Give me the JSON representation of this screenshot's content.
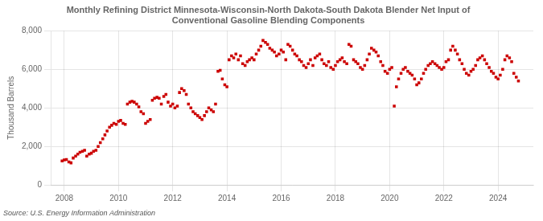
{
  "chart_data": {
    "type": "scatter",
    "title": "Monthly Refining District Minnesota-Wisconsin-North Dakota-South Dakota Blender Net Input of\nConventional Gasoline Blending Components",
    "ylabel": "Thousand Barrels",
    "source": "Source: U.S. Energy Information Administration",
    "color": "#cc0000",
    "marker": "square",
    "grid": true,
    "xlim": [
      2007.5,
      2025.3
    ],
    "xticks": [
      2008,
      2010,
      2012,
      2014,
      2016,
      2018,
      2020,
      2022,
      2024
    ],
    "ylim": [
      0,
      8000
    ],
    "yticks": [
      0,
      {
        "value": 2000,
        "label": "2,000"
      },
      {
        "value": 4000,
        "label": "4,000"
      },
      {
        "value": 6000,
        "label": "6,000"
      },
      {
        "value": 8000,
        "label": "8,000"
      }
    ],
    "x": [
      2007.92,
      2008.0,
      2008.08,
      2008.17,
      2008.25,
      2008.33,
      2008.42,
      2008.5,
      2008.58,
      2008.67,
      2008.75,
      2008.83,
      2008.92,
      2009.0,
      2009.08,
      2009.17,
      2009.25,
      2009.33,
      2009.42,
      2009.5,
      2009.58,
      2009.67,
      2009.75,
      2009.83,
      2009.92,
      2010.0,
      2010.08,
      2010.17,
      2010.25,
      2010.33,
      2010.42,
      2010.5,
      2010.58,
      2010.67,
      2010.75,
      2010.83,
      2010.92,
      2011.0,
      2011.08,
      2011.17,
      2011.25,
      2011.33,
      2011.42,
      2011.5,
      2011.58,
      2011.67,
      2011.75,
      2011.83,
      2011.92,
      2012.0,
      2012.08,
      2012.17,
      2012.25,
      2012.33,
      2012.42,
      2012.5,
      2012.58,
      2012.67,
      2012.75,
      2012.83,
      2012.92,
      2013.0,
      2013.08,
      2013.17,
      2013.25,
      2013.33,
      2013.42,
      2013.5,
      2013.58,
      2013.67,
      2013.75,
      2013.83,
      2013.92,
      2014.0,
      2014.08,
      2014.17,
      2014.25,
      2014.33,
      2014.42,
      2014.5,
      2014.58,
      2014.67,
      2014.75,
      2014.83,
      2014.92,
      2015.0,
      2015.08,
      2015.17,
      2015.25,
      2015.33,
      2015.42,
      2015.5,
      2015.58,
      2015.67,
      2015.75,
      2015.83,
      2015.92,
      2016.0,
      2016.08,
      2016.17,
      2016.25,
      2016.33,
      2016.42,
      2016.5,
      2016.58,
      2016.67,
      2016.75,
      2016.83,
      2016.92,
      2017.0,
      2017.08,
      2017.17,
      2017.25,
      2017.33,
      2017.42,
      2017.5,
      2017.58,
      2017.67,
      2017.75,
      2017.83,
      2017.92,
      2018.0,
      2018.08,
      2018.17,
      2018.25,
      2018.33,
      2018.42,
      2018.5,
      2018.58,
      2018.67,
      2018.75,
      2018.83,
      2018.92,
      2019.0,
      2019.08,
      2019.17,
      2019.25,
      2019.33,
      2019.42,
      2019.5,
      2019.58,
      2019.67,
      2019.75,
      2019.83,
      2019.92,
      2020.0,
      2020.08,
      2020.17,
      2020.25,
      2020.33,
      2020.42,
      2020.5,
      2020.58,
      2020.67,
      2020.75,
      2020.83,
      2020.92,
      2021.0,
      2021.08,
      2021.17,
      2021.25,
      2021.33,
      2021.42,
      2021.5,
      2021.58,
      2021.67,
      2021.75,
      2021.83,
      2021.92,
      2022.0,
      2022.08,
      2022.17,
      2022.25,
      2022.33,
      2022.42,
      2022.5,
      2022.58,
      2022.67,
      2022.75,
      2022.83,
      2022.92,
      2023.0,
      2023.08,
      2023.17,
      2023.25,
      2023.33,
      2023.42,
      2023.5,
      2023.58,
      2023.67,
      2023.75,
      2023.83,
      2023.92,
      2024.0,
      2024.08,
      2024.17,
      2024.25,
      2024.33,
      2024.42,
      2024.5,
      2024.58,
      2024.67,
      2024.75
    ],
    "values": [
      1250,
      1300,
      1320,
      1200,
      1150,
      1400,
      1500,
      1600,
      1700,
      1750,
      1800,
      1500,
      1600,
      1650,
      1750,
      1800,
      2000,
      2200,
      2400,
      2600,
      2800,
      3000,
      3100,
      3200,
      3150,
      3300,
      3350,
      3200,
      3150,
      4200,
      4300,
      4350,
      4300,
      4200,
      4050,
      3800,
      3700,
      3200,
      3300,
      3400,
      4400,
      4500,
      4550,
      4500,
      4200,
      4600,
      4700,
      4300,
      4100,
      4200,
      4000,
      4100,
      4800,
      5000,
      4900,
      4700,
      4200,
      4000,
      3800,
      3700,
      3600,
      3500,
      3400,
      3600,
      3800,
      4000,
      3900,
      3800,
      4200,
      5900,
      5950,
      5500,
      5200,
      5100,
      6500,
      6700,
      6600,
      6800,
      6500,
      6700,
      6300,
      6200,
      6400,
      6500,
      6600,
      6500,
      6800,
      7000,
      7200,
      7500,
      7400,
      7300,
      7100,
      7000,
      6900,
      6700,
      6800,
      7000,
      6900,
      6500,
      7300,
      7200,
      7000,
      6800,
      6700,
      6500,
      6400,
      6200,
      6100,
      6300,
      6500,
      6200,
      6600,
      6700,
      6800,
      6500,
      6300,
      6200,
      6400,
      6100,
      6000,
      6200,
      6400,
      6500,
      6600,
      6400,
      6300,
      7300,
      7200,
      6500,
      6400,
      6300,
      6100,
      6000,
      6200,
      6500,
      6800,
      7100,
      7000,
      6900,
      6700,
      6400,
      6200,
      5900,
      5800,
      6000,
      6100,
      4100,
      5100,
      5500,
      5800,
      6000,
      6100,
      5900,
      5800,
      5700,
      5500,
      5200,
      5300,
      5500,
      5800,
      6000,
      6200,
      6300,
      6400,
      6300,
      6200,
      6100,
      6000,
      6100,
      6400,
      6500,
      7000,
      7200,
      7000,
      6800,
      6500,
      6300,
      6000,
      5800,
      5700,
      5900,
      6000,
      6200,
      6500,
      6600,
      6700,
      6500,
      6300,
      6100,
      5900,
      5800,
      5600,
      5500,
      5700,
      6000,
      6500,
      6700,
      6600,
      6400,
      5800,
      5600,
      5400
    ]
  }
}
